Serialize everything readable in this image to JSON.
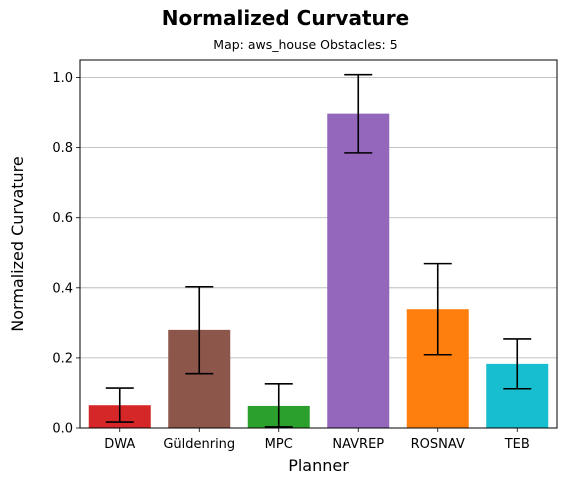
{
  "chart_data": {
    "type": "bar",
    "title": "Normalized Curvature",
    "subtitle": "Map: aws_house Obstacles: 5",
    "xlabel": "Planner",
    "ylabel": "Normalized Curvature",
    "ylim": [
      0,
      1.05
    ],
    "yticks": [
      "0.0",
      "0.2",
      "0.4",
      "0.6",
      "0.8",
      "1.0"
    ],
    "grid": "horizontal",
    "categories": [
      "DWA",
      "Güldenring",
      "MPC",
      "NAVREP",
      "ROSNAV",
      "TEB"
    ],
    "values": [
      0.065,
      0.28,
      0.063,
      0.897,
      0.339,
      0.183
    ],
    "error_low": [
      0.017,
      0.155,
      0.003,
      0.785,
      0.209,
      0.112
    ],
    "error_high": [
      0.114,
      0.403,
      0.126,
      1.008,
      0.469,
      0.254
    ],
    "colors": [
      "#d62728",
      "#8c564b",
      "#2ca02c",
      "#9467bd",
      "#ff7f0e",
      "#17becf"
    ]
  }
}
